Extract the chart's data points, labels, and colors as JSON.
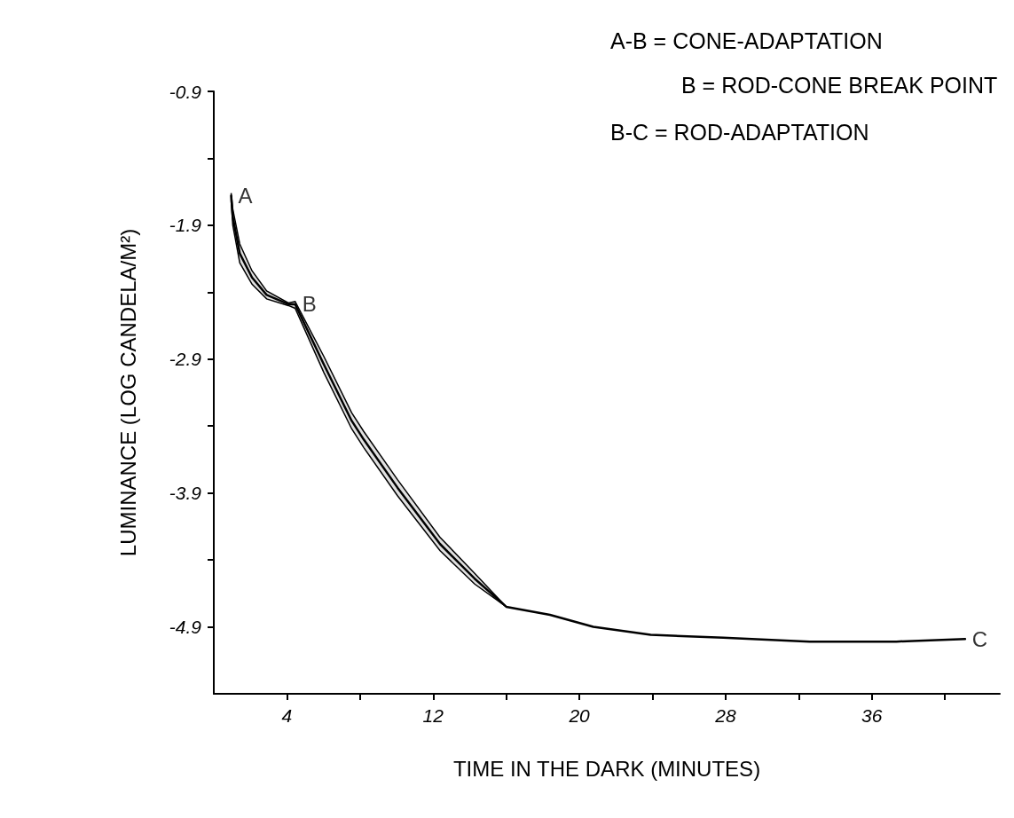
{
  "chart_data": {
    "type": "line",
    "xlabel": "TIME IN THE DARK (MINUTES)",
    "ylabel": "LUMINANCE (LOG CANDELA/M²)",
    "x": [
      0.95,
      1.04,
      1.42,
      2.09,
      2.89,
      4.08,
      4.45,
      6.02,
      7.54,
      8.2,
      10.05,
      12.37,
      14.27,
      16.0,
      18.39,
      20.76,
      23.9,
      27.87,
      32.6,
      37.35,
      41.1
    ],
    "series": [
      {
        "color": "#000000",
        "values": [
          -1.68,
          -1.84,
          -2.11,
          -2.29,
          -2.42,
          -2.49,
          -2.49,
          -2.94,
          -3.36,
          -3.5,
          -3.86,
          -4.28,
          -4.54,
          -4.75,
          -4.81,
          -4.9,
          -4.96,
          -4.98,
          -5.01,
          -5.01,
          -4.99
        ],
        "lower": [
          -1.72,
          -1.9,
          -2.18,
          -2.34,
          -2.45,
          -2.5,
          -2.52,
          -3.0,
          -3.42,
          -3.56,
          -3.92,
          -4.33,
          -4.58,
          -4.75,
          null,
          null,
          null,
          null,
          null,
          null,
          null
        ],
        "upper": [
          -1.66,
          -1.78,
          -2.04,
          -2.24,
          -2.39,
          -2.48,
          -2.47,
          -2.88,
          -3.3,
          -3.44,
          -3.8,
          -4.23,
          -4.5,
          -4.75,
          null,
          null,
          null,
          null,
          null,
          null,
          null
        ]
      }
    ],
    "xlim": [
      0,
      43
    ],
    "xticks": [
      {
        "value": 4,
        "label": "4"
      },
      {
        "value": 8,
        "label": null
      },
      {
        "value": 12,
        "label": "12"
      },
      {
        "value": 16,
        "label": null
      },
      {
        "value": 20,
        "label": "20"
      },
      {
        "value": 24,
        "label": null
      },
      {
        "value": 28,
        "label": "28"
      },
      {
        "value": 32,
        "label": null
      },
      {
        "value": 36,
        "label": "36"
      },
      {
        "value": 40,
        "label": null
      }
    ],
    "ylim": [
      -5.4,
      -0.9
    ],
    "yticks": [
      -0.9,
      {
        "value": -1.4,
        "label": null
      },
      -1.9,
      {
        "value": -2.4,
        "label": null
      },
      -2.9,
      {
        "value": -3.4,
        "label": null
      },
      -3.9,
      {
        "value": -4.4,
        "label": null
      },
      -4.9
    ],
    "grid": false,
    "marker": "none",
    "line_style": "solid",
    "annotations": [
      "A-B = CONE-ADAPTATION",
      "B = ROD-CONE BREAK POINT",
      "B-C = ROD-ADAPTATION",
      {
        "text": "A",
        "x": 0.95,
        "y": -1.68
      },
      {
        "text": "B",
        "x": 4.45,
        "y": -2.49
      },
      {
        "text": "C",
        "x": 41.1,
        "y": -4.99
      }
    ]
  }
}
